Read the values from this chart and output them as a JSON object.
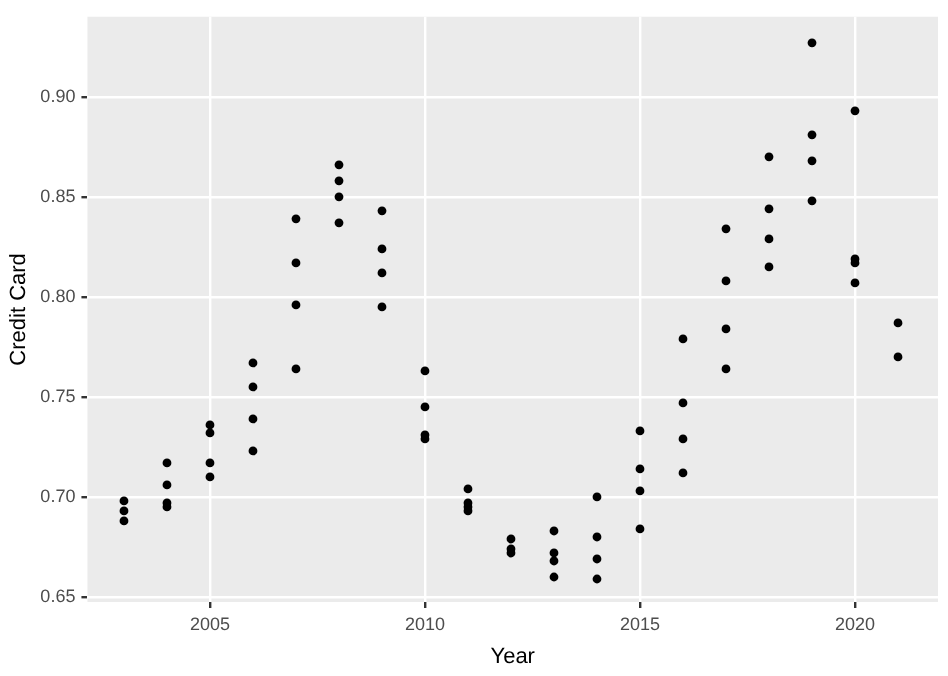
{
  "chart_data": {
    "type": "scatter",
    "xlabel": "Year",
    "ylabel": "Credit Card",
    "x": [
      2003,
      2003,
      2003,
      2004,
      2004,
      2004,
      2004,
      2005,
      2005,
      2005,
      2005,
      2006,
      2006,
      2006,
      2006,
      2007,
      2007,
      2007,
      2007,
      2008,
      2008,
      2008,
      2008,
      2009,
      2009,
      2009,
      2009,
      2010,
      2010,
      2010,
      2010,
      2011,
      2011,
      2011,
      2011,
      2012,
      2012,
      2012,
      2013,
      2013,
      2013,
      2013,
      2014,
      2014,
      2014,
      2014,
      2015,
      2015,
      2015,
      2015,
      2016,
      2016,
      2016,
      2016,
      2017,
      2017,
      2017,
      2017,
      2018,
      2018,
      2018,
      2018,
      2019,
      2019,
      2019,
      2019,
      2020,
      2020,
      2020,
      2020,
      2021,
      2021
    ],
    "values": [
      0.698,
      0.693,
      0.688,
      0.717,
      0.706,
      0.697,
      0.695,
      0.736,
      0.732,
      0.717,
      0.71,
      0.767,
      0.755,
      0.739,
      0.723,
      0.839,
      0.817,
      0.796,
      0.764,
      0.866,
      0.858,
      0.85,
      0.837,
      0.843,
      0.824,
      0.812,
      0.795,
      0.763,
      0.745,
      0.731,
      0.729,
      0.704,
      0.697,
      0.695,
      0.693,
      0.679,
      0.674,
      0.672,
      0.683,
      0.672,
      0.668,
      0.66,
      0.7,
      0.68,
      0.669,
      0.659,
      0.733,
      0.714,
      0.703,
      0.684,
      0.779,
      0.747,
      0.729,
      0.712,
      0.834,
      0.808,
      0.784,
      0.764,
      0.87,
      0.844,
      0.829,
      0.815,
      0.927,
      0.881,
      0.868,
      0.848,
      0.893,
      0.819,
      0.817,
      0.807,
      0.787,
      0.77
    ],
    "color": "#000000",
    "marker": "circle",
    "xlim": [
      2002.15,
      2021.93
    ],
    "xticks": [
      2005,
      2010,
      2015,
      2020
    ],
    "ylim": [
      0.6475,
      0.94
    ],
    "yticks": [
      {
        "value": 0.65,
        "label": "0.65"
      },
      {
        "value": 0.7,
        "label": "0.70"
      },
      {
        "value": 0.75,
        "label": "0.75"
      },
      {
        "value": 0.8,
        "label": "0.80"
      },
      {
        "value": 0.85,
        "label": "0.85"
      },
      {
        "value": 0.9,
        "label": "0.90"
      }
    ],
    "grid": true
  }
}
